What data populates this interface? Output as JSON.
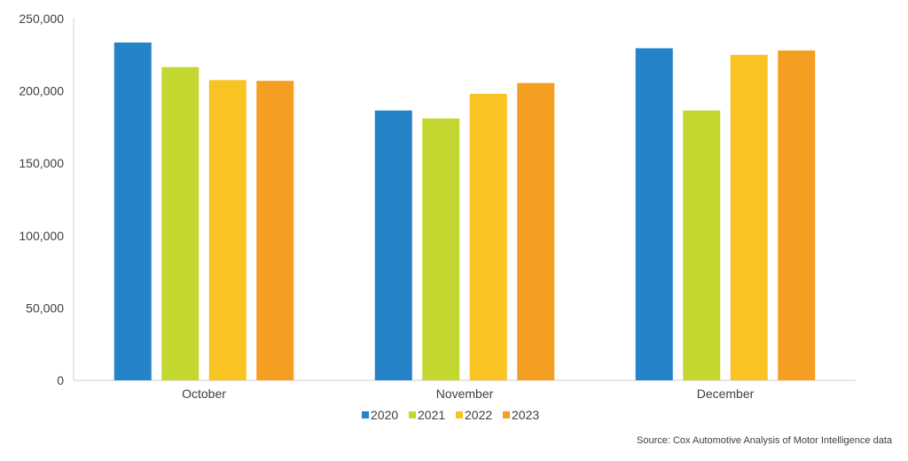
{
  "chart_data": {
    "type": "bar",
    "categories": [
      "October",
      "November",
      "December"
    ],
    "series": [
      {
        "name": "2020",
        "color": "#2584C8",
        "values": [
          233500,
          186500,
          229500
        ]
      },
      {
        "name": "2021",
        "color": "#C4D630",
        "values": [
          216500,
          181000,
          186500
        ]
      },
      {
        "name": "2022",
        "color": "#F9C323",
        "values": [
          207500,
          198000,
          225000
        ]
      },
      {
        "name": "2023",
        "color": "#F59F22",
        "values": [
          207000,
          205500,
          228000
        ]
      }
    ],
    "ylim": [
      0,
      250000
    ],
    "yticks": [
      0,
      50000,
      100000,
      150000,
      200000,
      250000
    ],
    "ytick_labels": [
      "0",
      "50,000",
      "100,000",
      "150,000",
      "200,000",
      "250,000"
    ],
    "grid": false,
    "legend_position": "bottom-center",
    "title": "",
    "xlabel": "",
    "ylabel": ""
  },
  "footer": {
    "source": "Source: Cox Automotive Analysis of Motor Intelligence data"
  }
}
